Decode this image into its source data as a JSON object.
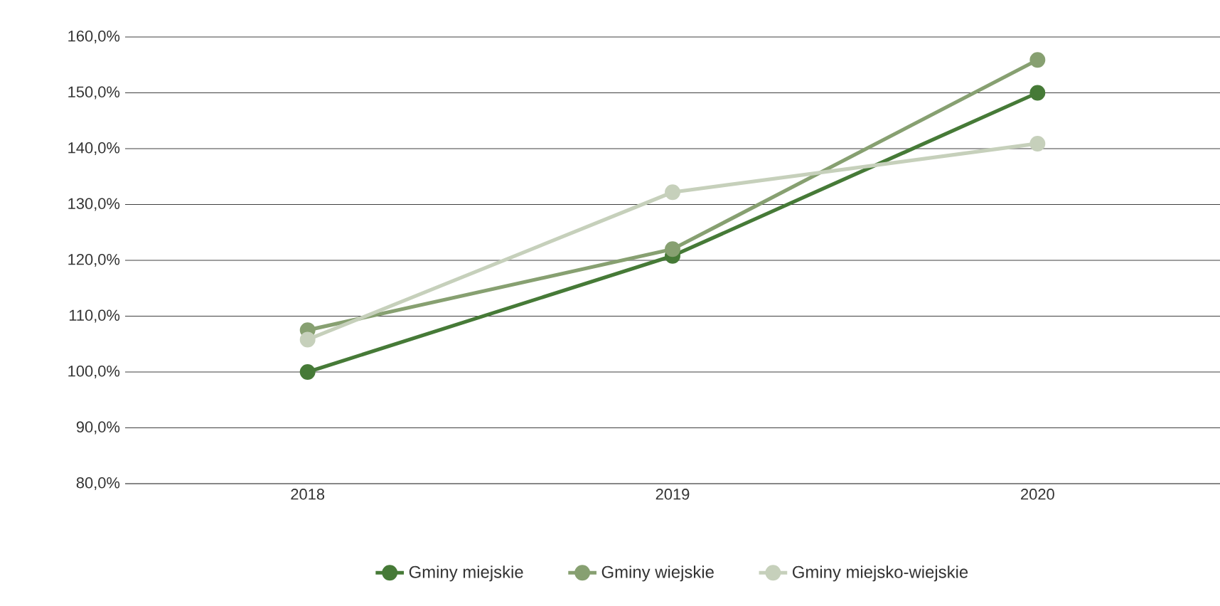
{
  "chart_data": {
    "type": "line",
    "categories": [
      "2018",
      "2019",
      "2020"
    ],
    "series": [
      {
        "name": "Gminy miejskie",
        "color": "#467a37",
        "values": [
          100,
          120.8,
          150
        ]
      },
      {
        "name": "Gminy wiejskie",
        "color": "#87a071",
        "values": [
          107.5,
          122,
          155.9
        ]
      },
      {
        "name": "Gminy miejsko-wiejskie",
        "color": "#c6d0bb",
        "values": [
          105.8,
          132.2,
          140.9
        ]
      }
    ],
    "ylim": [
      80,
      160
    ],
    "yticks": [
      {
        "value": 80,
        "label": "80,0%"
      },
      {
        "value": 90,
        "label": "90,0%"
      },
      {
        "value": 100,
        "label": "100,0%"
      },
      {
        "value": 110,
        "label": "110,0%"
      },
      {
        "value": 120,
        "label": "120,0%"
      },
      {
        "value": 130,
        "label": "130,0%"
      },
      {
        "value": 140,
        "label": "140,0%"
      },
      {
        "value": 150,
        "label": "150,0%"
      },
      {
        "value": 160,
        "label": "160,0%"
      }
    ],
    "grid": "y",
    "legend": "bottom",
    "marker": "circle",
    "line_style": "solid"
  }
}
